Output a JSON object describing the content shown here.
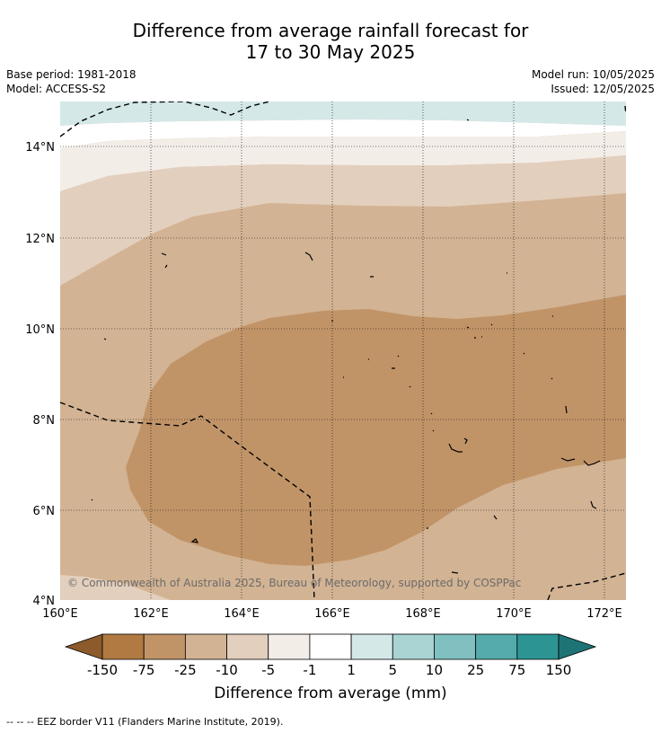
{
  "title_line1": "Difference from average rainfall forecast for",
  "title_line2": "17 to 30 May 2025",
  "base_period": "Base period: 1981-2018",
  "model": "Model: ACCESS-S2",
  "model_run": "Model run: 10/05/2025",
  "issued": "Issued: 12/05/2025",
  "lat_labels": [
    "14°N",
    "12°N",
    "10°N",
    "8°N",
    "6°N",
    "4°N"
  ],
  "lon_labels": [
    "160°E",
    "162°E",
    "164°E",
    "166°E",
    "168°E",
    "170°E",
    "172°E"
  ],
  "copyright": "© Commonwealth of Australia 2025, Bureau of Meteorology, supported by COSPPac",
  "colorbar": {
    "title": "Difference from average (mm)",
    "ticks": [
      "-150",
      "-75",
      "-25",
      "-10",
      "-5",
      "-1",
      "1",
      "5",
      "10",
      "25",
      "75",
      "150"
    ],
    "colors": [
      "#8c5a2b",
      "#b07a42",
      "#c19468",
      "#d2b393",
      "#e3cfbd",
      "#f3ede8",
      "#ffffff",
      "#d4e8e8",
      "#aad4d4",
      "#80c0c0",
      "#55abab",
      "#2d9494",
      "#1e7474"
    ]
  },
  "footer": "-- -- -- EEZ border V11 (Flanders Marine Institute, 2019)."
}
